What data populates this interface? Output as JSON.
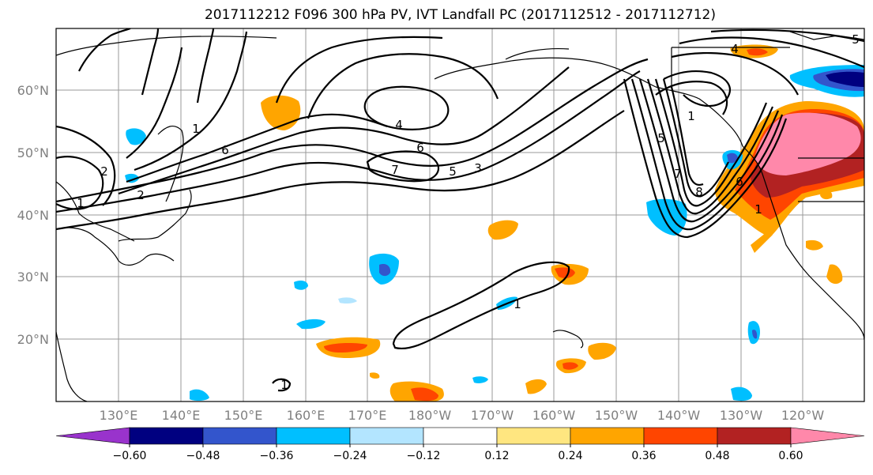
{
  "title": "2017112212 F096 300 hPa PV, IVT Landfall PC (2017112512 - 2017112712)",
  "latitude_labels": [
    "60°N",
    "50°N",
    "40°N",
    "30°N",
    "20°N"
  ],
  "longitude_labels": [
    "130°E",
    "140°E",
    "150°E",
    "160°E",
    "170°E",
    "180°W",
    "170°W",
    "160°W",
    "150°W",
    "140°W",
    "130°W",
    "120°W"
  ],
  "colorbar": {
    "colors": [
      "#9933cc",
      "#000080",
      "#3355cc",
      "#00bfff",
      "#b3e5ff",
      "#ffffff",
      "#ffe680",
      "#ffa500",
      "#ff4500",
      "#b22222",
      "#ff88aa"
    ],
    "tick_labels": [
      "−0.60",
      "−0.48",
      "−0.36",
      "−0.24",
      "−0.12",
      "0.12",
      "0.24",
      "0.36",
      "0.48",
      "0.60"
    ]
  },
  "contour_labels": [
    "4",
    "6",
    "7",
    "5",
    "3",
    "1",
    "2",
    "6",
    "1",
    "1",
    "5",
    "7",
    "8",
    "6",
    "1",
    "1",
    "4",
    "5",
    "1",
    "2"
  ]
}
